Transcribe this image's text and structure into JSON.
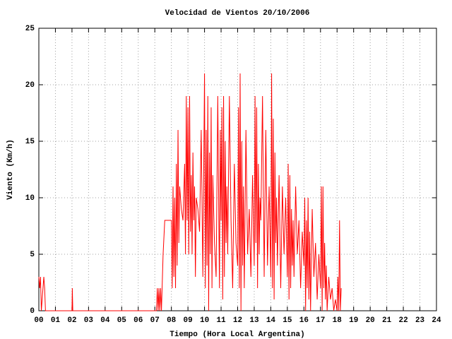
{
  "chart_data": {
    "type": "line",
    "title": "Velocidad de Vientos 20/10/2006",
    "x_label": "Tiempo (Hora Local Argentina)",
    "y_label": "Viento (Km/h)",
    "xlim": [
      0,
      24
    ],
    "ylim": [
      0,
      25
    ],
    "xticks": [
      {
        "value": 0,
        "label": "00"
      },
      {
        "value": 1,
        "label": "01"
      },
      {
        "value": 2,
        "label": "02"
      },
      {
        "value": 3,
        "label": "03"
      },
      {
        "value": 4,
        "label": "04"
      },
      {
        "value": 5,
        "label": "05"
      },
      {
        "value": 6,
        "label": "06"
      },
      {
        "value": 7,
        "label": "07"
      },
      {
        "value": 8,
        "label": "08"
      },
      {
        "value": 9,
        "label": "09"
      },
      10,
      11,
      12,
      13,
      14,
      15,
      16,
      17,
      18,
      19,
      20,
      21,
      22,
      23,
      24
    ],
    "yticks": [
      0,
      5,
      10,
      15,
      20,
      25
    ],
    "grid": true,
    "series": [
      {
        "color": "#ff0000",
        "x": [
          0,
          0.05,
          0.1,
          0.15,
          0.3,
          0.35,
          0.4,
          0.45,
          2.0,
          2.02,
          2.05,
          2.1,
          7.1,
          7.15,
          7.2,
          7.25,
          7.3,
          7.35,
          7.4,
          7.5,
          7.6,
          8.0,
          8.05,
          8.1,
          8.15,
          8.2,
          8.25,
          8.3,
          8.35,
          8.4,
          8.45,
          8.5,
          8.55,
          8.6,
          8.7,
          8.8,
          8.85,
          8.9,
          8.95,
          9.0,
          9.05,
          9.1,
          9.15,
          9.2,
          9.25,
          9.3,
          9.35,
          9.4,
          9.45,
          9.5,
          9.6,
          9.7,
          9.8,
          9.9,
          10.0,
          10.05,
          10.1,
          10.15,
          10.2,
          10.25,
          10.3,
          10.35,
          10.4,
          10.45,
          10.5,
          10.6,
          10.7,
          10.8,
          10.9,
          10.95,
          11.0,
          11.05,
          11.1,
          11.15,
          11.2,
          11.25,
          11.3,
          11.35,
          11.4,
          11.5,
          11.6,
          11.7,
          11.8,
          11.9,
          12.0,
          12.05,
          12.1,
          12.15,
          12.2,
          12.25,
          12.3,
          12.35,
          12.4,
          12.5,
          12.6,
          12.7,
          12.8,
          12.9,
          13.0,
          13.05,
          13.1,
          13.15,
          13.2,
          13.25,
          13.3,
          13.35,
          13.4,
          13.5,
          13.6,
          13.7,
          13.8,
          13.9,
          14.0,
          14.05,
          14.1,
          14.15,
          14.2,
          14.25,
          14.3,
          14.35,
          14.4,
          14.5,
          14.6,
          14.7,
          14.8,
          14.9,
          15.0,
          15.05,
          15.1,
          15.15,
          15.2,
          15.25,
          15.3,
          15.35,
          15.4,
          15.5,
          15.6,
          15.7,
          15.8,
          15.9,
          16.0,
          16.05,
          16.1,
          16.15,
          16.2,
          16.25,
          16.3,
          16.35,
          16.4,
          16.5,
          16.6,
          16.7,
          16.8,
          16.9,
          17.0,
          17.05,
          17.1,
          17.15,
          17.2,
          17.25,
          17.3,
          17.35,
          17.4,
          17.5,
          17.6,
          17.7,
          17.8,
          17.9,
          18.0,
          18.05,
          18.1,
          18.15,
          18.2,
          18.25
        ],
        "values": [
          3,
          2,
          3,
          0,
          3,
          2,
          0,
          0,
          0,
          2,
          0,
          0,
          0,
          2,
          0,
          2,
          0,
          2,
          0,
          5,
          8,
          8,
          2,
          11,
          3,
          10,
          2,
          13,
          4,
          16,
          6,
          11,
          10,
          9,
          8,
          13,
          5,
          19,
          8,
          18,
          5,
          19,
          7,
          12,
          5,
          14,
          8,
          11,
          3,
          10,
          9,
          7,
          16,
          3,
          21,
          2,
          16,
          4,
          19,
          0,
          14,
          5,
          18,
          2,
          12,
          6,
          3,
          19,
          2,
          16,
          8,
          18,
          1,
          19,
          3,
          15,
          6,
          11,
          5,
          19,
          8,
          2,
          13,
          6,
          4,
          18,
          2,
          21,
          0,
          15,
          4,
          11,
          2,
          16,
          5,
          9,
          3,
          12,
          4,
          19,
          6,
          18,
          2,
          13,
          5,
          10,
          8,
          19,
          3,
          16,
          4,
          11,
          3,
          21,
          2,
          17,
          1,
          14,
          6,
          10,
          4,
          12,
          2,
          11,
          5,
          10,
          3,
          13,
          1,
          12,
          2,
          9,
          4,
          8,
          3,
          11,
          5,
          8,
          2,
          7,
          4,
          10,
          0,
          8,
          2,
          10,
          1,
          7,
          0,
          9,
          3,
          6,
          1,
          5,
          2,
          11,
          0,
          11,
          2,
          6,
          1,
          4,
          0,
          3,
          1,
          2,
          0,
          1,
          0,
          3,
          0,
          8,
          0,
          2
        ]
      }
    ]
  }
}
